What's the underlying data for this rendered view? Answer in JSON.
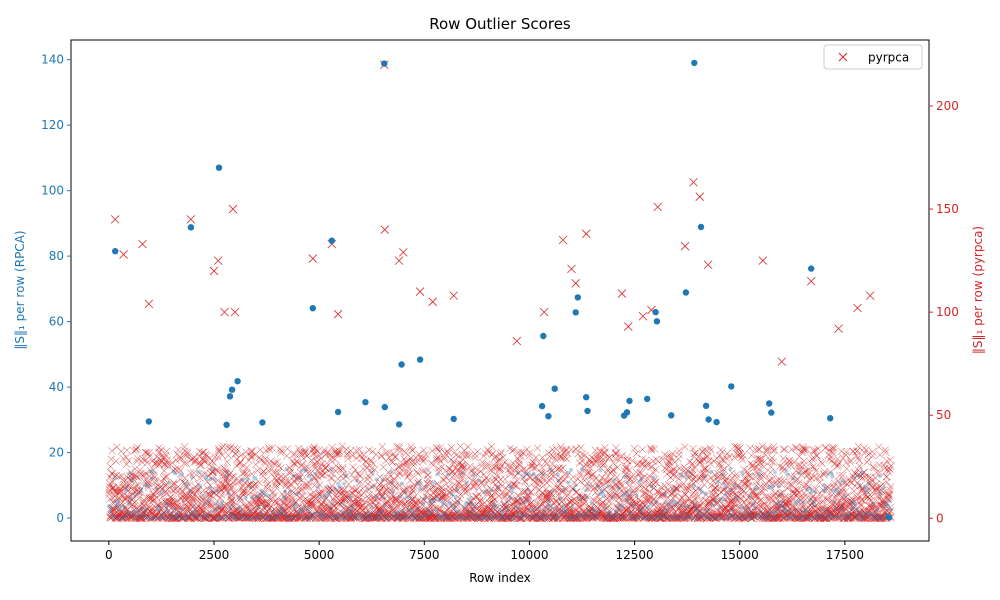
{
  "chart_data": {
    "type": "scatter",
    "title": "Row Outlier Scores",
    "xlabel": "Row index",
    "ylabel_left": "‖S‖₁ per row (RPCA)",
    "ylabel_right": "‖S‖₁ per row (pyrpca)",
    "xlim": [
      -900,
      19500
    ],
    "ylim_left": [
      -7,
      146
    ],
    "ylim_right": [
      -11,
      232
    ],
    "x_ticks": [
      0,
      2500,
      5000,
      7500,
      10000,
      12500,
      15000,
      17500
    ],
    "x_tick_labels": [
      "0",
      "2500",
      "5000",
      "7500",
      "10000",
      "12500",
      "15000",
      "17500"
    ],
    "y_left_ticks": [
      0,
      20,
      40,
      60,
      80,
      100,
      120,
      140
    ],
    "y_left_tick_labels": [
      "0",
      "20",
      "40",
      "60",
      "80",
      "100",
      "120",
      "140"
    ],
    "y_right_ticks": [
      0,
      50,
      100,
      150,
      200
    ],
    "y_right_tick_labels": [
      "0",
      "50",
      "100",
      "150",
      "200"
    ],
    "legend_position": "top-right",
    "grid": false,
    "row_count": 18600,
    "series": [
      {
        "name": "",
        "axis": "left",
        "marker": "circle",
        "color": "#1f77b4",
        "bulk_range": [
          0,
          15
        ],
        "points": [
          [
            150,
            81.5
          ],
          [
            950,
            29.5
          ],
          [
            1950,
            88.8
          ],
          [
            2620,
            107
          ],
          [
            2800,
            28.5
          ],
          [
            2880,
            37.2
          ],
          [
            2930,
            39.2
          ],
          [
            3060,
            41.8
          ],
          [
            3650,
            29.2
          ],
          [
            4850,
            64.1
          ],
          [
            5300,
            84.7
          ],
          [
            5450,
            32.4
          ],
          [
            6100,
            35.4
          ],
          [
            6550,
            138.8
          ],
          [
            6560,
            33.9
          ],
          [
            6900,
            28.6
          ],
          [
            6960,
            46.9
          ],
          [
            7400,
            48.4
          ],
          [
            8200,
            30.3
          ],
          [
            10300,
            34.2
          ],
          [
            10330,
            55.6
          ],
          [
            10450,
            31.1
          ],
          [
            10600,
            39.5
          ],
          [
            11100,
            62.8
          ],
          [
            11150,
            67.4
          ],
          [
            11350,
            36.9
          ],
          [
            11380,
            32.7
          ],
          [
            12250,
            31.3
          ],
          [
            12320,
            32.3
          ],
          [
            12380,
            35.8
          ],
          [
            12800,
            36.4
          ],
          [
            13000,
            62.9
          ],
          [
            13030,
            60.1
          ],
          [
            13370,
            31.4
          ],
          [
            13720,
            68.9
          ],
          [
            13920,
            139
          ],
          [
            14080,
            88.9
          ],
          [
            14200,
            34.3
          ],
          [
            14260,
            30.1
          ],
          [
            14450,
            29.3
          ],
          [
            14800,
            40.2
          ],
          [
            15700,
            35.0
          ],
          [
            15750,
            32.2
          ],
          [
            16700,
            76.2
          ],
          [
            17150,
            30.5
          ],
          [
            18550,
            0.2
          ]
        ]
      },
      {
        "name": "pyrpca",
        "axis": "right",
        "marker": "x",
        "color": "#d62728",
        "bulk_range": [
          0,
          35
        ],
        "points": [
          [
            150,
            145
          ],
          [
            350,
            128
          ],
          [
            800,
            133
          ],
          [
            950,
            104
          ],
          [
            1950,
            145
          ],
          [
            2500,
            120
          ],
          [
            2600,
            125
          ],
          [
            2950,
            150
          ],
          [
            5300,
            133
          ],
          [
            5450,
            99
          ],
          [
            4850,
            126
          ],
          [
            6550,
            220
          ],
          [
            6560,
            140
          ],
          [
            6900,
            125
          ],
          [
            7000,
            129
          ],
          [
            7400,
            110
          ],
          [
            7700,
            105
          ],
          [
            8200,
            108
          ],
          [
            10800,
            135
          ],
          [
            11000,
            121
          ],
          [
            11100,
            114
          ],
          [
            11350,
            138
          ],
          [
            12200,
            109
          ],
          [
            12350,
            93
          ],
          [
            12900,
            101
          ],
          [
            13050,
            151
          ],
          [
            13700,
            132
          ],
          [
            13900,
            163
          ],
          [
            14050,
            156
          ],
          [
            14250,
            123
          ],
          [
            15550,
            125
          ],
          [
            16700,
            115
          ],
          [
            17800,
            102
          ],
          [
            18100,
            108
          ],
          [
            17350,
            92
          ],
          [
            10350,
            100
          ],
          [
            16000,
            76
          ],
          [
            9700,
            86
          ],
          [
            12700,
            98
          ],
          [
            3000,
            100
          ],
          [
            2750,
            100
          ]
        ]
      }
    ]
  }
}
